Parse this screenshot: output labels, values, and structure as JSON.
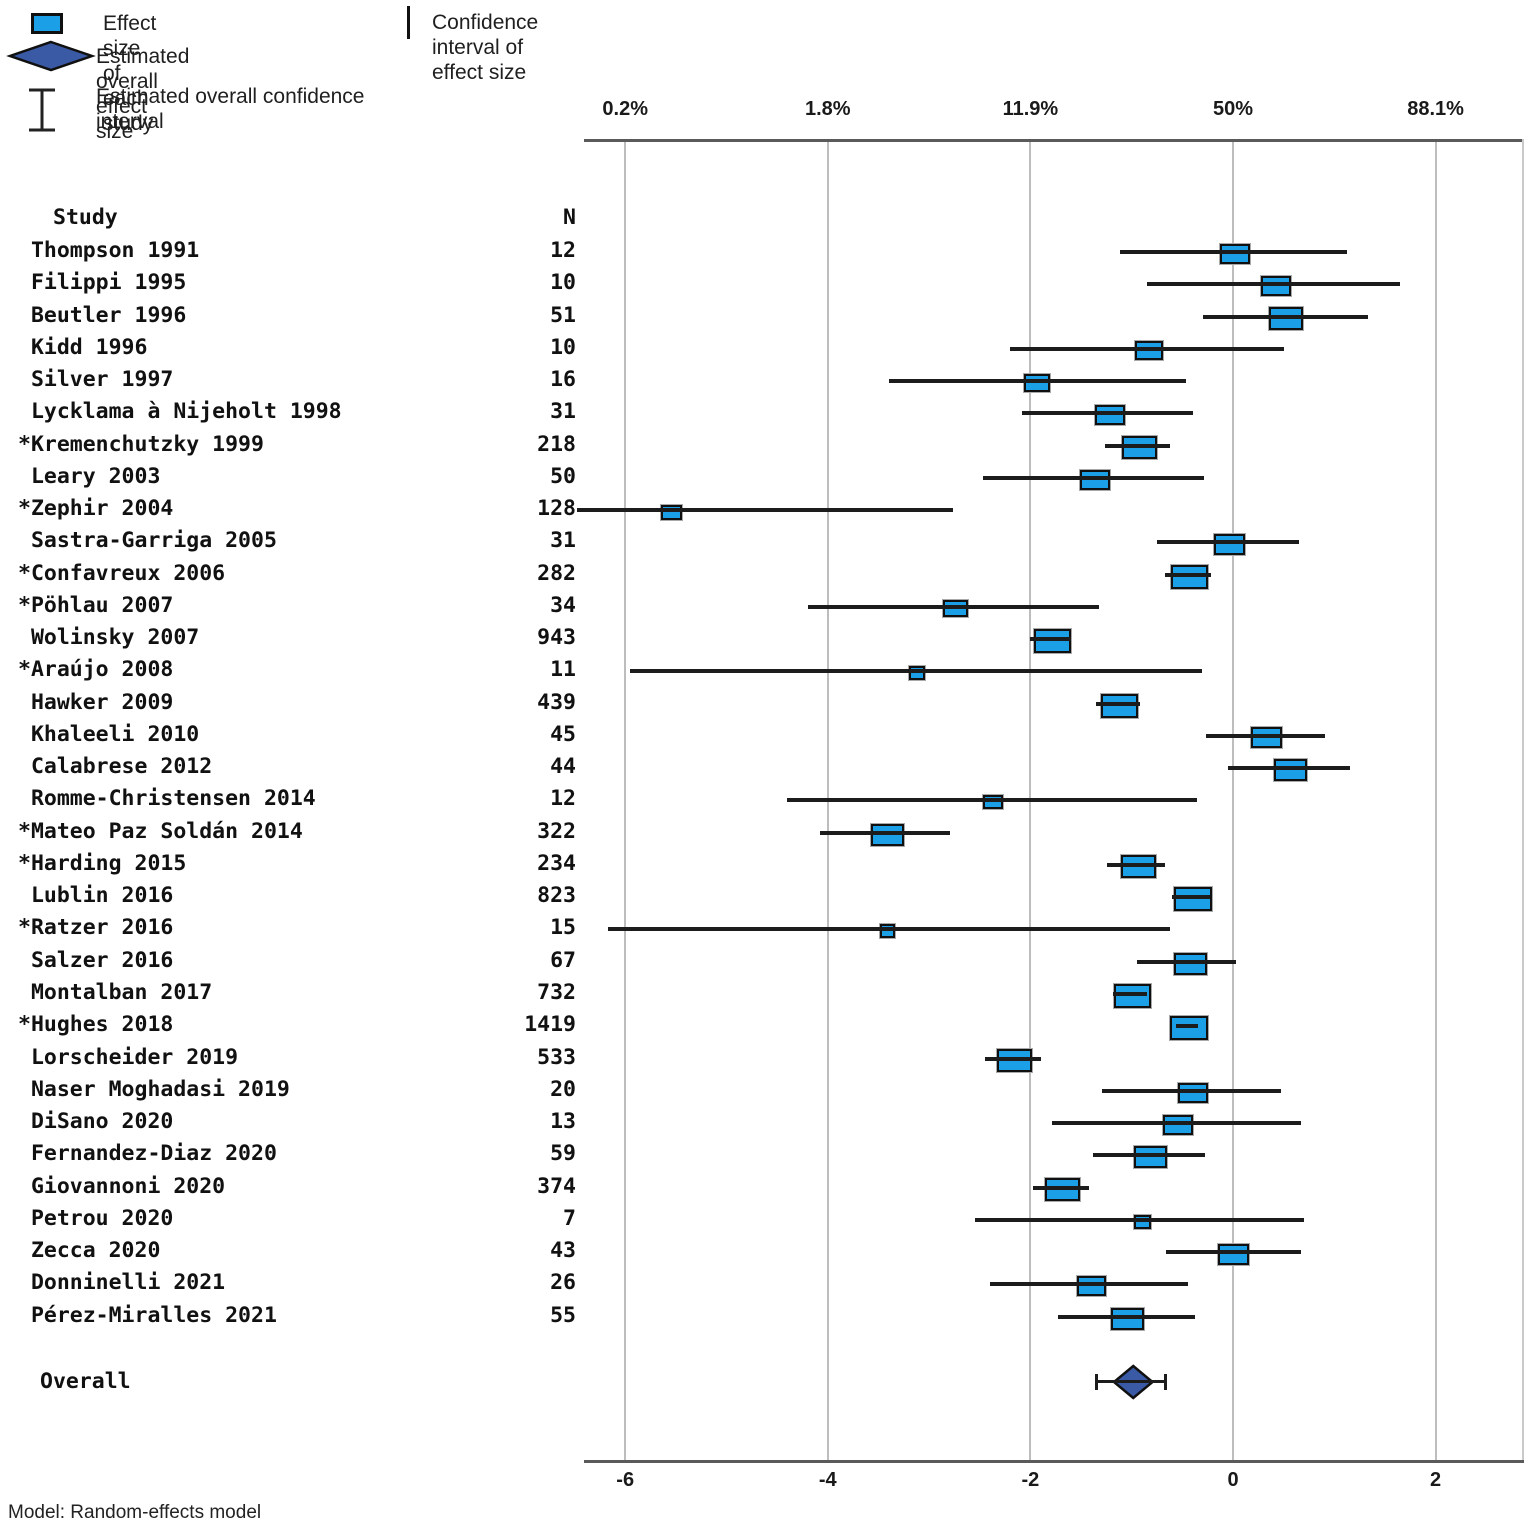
{
  "legend": {
    "items": [
      {
        "icon": "effect-box-icon",
        "label": "Effect size of each study"
      },
      {
        "icon": "overall-diamond-icon",
        "label": "Estimated overall effect size"
      },
      {
        "icon": "overall-ci-ibeam-icon",
        "label": "Estimated overall confidence interval"
      }
    ],
    "separator_label": "Confidence interval of effect size"
  },
  "columns": {
    "study": "Study",
    "n": "N"
  },
  "overall_label": "Overall",
  "model_note": "Model: Random-effects model",
  "colors": {
    "box_fill": "#1b9fe6",
    "diamond_fill": "#3a5aa5",
    "ci_line": "#1c1c1c",
    "gridline": "#bdbdbd",
    "axis": "#5a5a5a"
  },
  "chart_data": {
    "type": "forest",
    "title": "",
    "top_axis_ticks": [
      "0.2%",
      "1.8%",
      "11.9%",
      "50%",
      "88.1%"
    ],
    "bottom_axis_ticks": [
      "-6",
      "-4",
      "-2",
      "0",
      "2"
    ],
    "axis_values": [
      -6,
      -4,
      -2,
      0,
      2
    ],
    "xlim": [
      -6.4,
      2.9
    ],
    "grid": "vertical",
    "studies": [
      {
        "name": "Thompson 1991",
        "n": "12",
        "es": 0.0,
        "lo": -1.12,
        "hi": 1.12,
        "w": 0.26
      },
      {
        "name": "Filippi 1995",
        "n": "10",
        "es": 0.4,
        "lo": -0.85,
        "hi": 1.65,
        "w": 0.26
      },
      {
        "name": "Beutler 1996",
        "n": "51",
        "es": 0.5,
        "lo": -0.3,
        "hi": 1.33,
        "w": 0.3
      },
      {
        "name": "Kidd 1996",
        "n": "10",
        "es": -0.85,
        "lo": -2.2,
        "hi": 0.5,
        "w": 0.24
      },
      {
        "name": "Silver 1997",
        "n": "16",
        "es": -1.95,
        "lo": -3.4,
        "hi": -0.47,
        "w": 0.22
      },
      {
        "name": "Lycklama à Nijeholt 1998",
        "n": "31",
        "es": -1.23,
        "lo": -2.08,
        "hi": -0.39,
        "w": 0.26
      },
      {
        "name": "*Kremenchutzky 1999",
        "n": "218",
        "es": -0.94,
        "lo": -1.26,
        "hi": -0.62,
        "w": 0.31
      },
      {
        "name": "Leary 2003",
        "n": "50",
        "es": -1.38,
        "lo": -2.47,
        "hi": -0.29,
        "w": 0.26
      },
      {
        "name": "*Zephir 2004",
        "n": "128",
        "es": -5.56,
        "lo": -6.48,
        "hi": -2.77,
        "w": 0.17
      },
      {
        "name": "Sastra-Garriga 2005",
        "n": "31",
        "es": -0.05,
        "lo": -0.75,
        "hi": 0.65,
        "w": 0.27
      },
      {
        "name": "*Confavreux 2006",
        "n": "282",
        "es": -0.45,
        "lo": -0.67,
        "hi": -0.22,
        "w": 0.33
      },
      {
        "name": "*Pöhlau 2007",
        "n": "34",
        "es": -2.76,
        "lo": -4.2,
        "hi": -1.33,
        "w": 0.21
      },
      {
        "name": "Wolinsky 2007",
        "n": "943",
        "es": -1.8,
        "lo": -2.0,
        "hi": -1.6,
        "w": 0.33
      },
      {
        "name": "*Araújo 2008",
        "n": "11",
        "es": -3.14,
        "lo": -5.95,
        "hi": -0.3,
        "w": 0.12
      },
      {
        "name": "Hawker 2009",
        "n": "439",
        "es": -1.14,
        "lo": -1.35,
        "hi": -0.92,
        "w": 0.33
      },
      {
        "name": "Khaleeli 2010",
        "n": "45",
        "es": 0.31,
        "lo": -0.27,
        "hi": 0.9,
        "w": 0.27
      },
      {
        "name": "Calabrese 2012",
        "n": "44",
        "es": 0.55,
        "lo": -0.05,
        "hi": 1.15,
        "w": 0.29
      },
      {
        "name": "Romme-Christensen 2014",
        "n": "12",
        "es": -2.39,
        "lo": -4.4,
        "hi": -0.35,
        "w": 0.16
      },
      {
        "name": "*Mateo Paz Soldán 2014",
        "n": "322",
        "es": -3.43,
        "lo": -4.08,
        "hi": -2.8,
        "w": 0.29
      },
      {
        "name": "*Harding 2015",
        "n": "234",
        "es": -0.95,
        "lo": -1.24,
        "hi": -0.67,
        "w": 0.31
      },
      {
        "name": "Lublin 2016",
        "n": "823",
        "es": -0.41,
        "lo": -0.6,
        "hi": -0.22,
        "w": 0.34
      },
      {
        "name": "*Ratzer 2016",
        "n": "15",
        "es": -3.43,
        "lo": -6.17,
        "hi": -0.62,
        "w": 0.11
      },
      {
        "name": "Salzer 2016",
        "n": "67",
        "es": -0.44,
        "lo": -0.95,
        "hi": 0.03,
        "w": 0.29
      },
      {
        "name": "Montalban 2017",
        "n": "732",
        "es": -1.01,
        "lo": -1.18,
        "hi": -0.84,
        "w": 0.33
      },
      {
        "name": "*Hughes 2018",
        "n": "1419",
        "es": -0.45,
        "lo": -0.56,
        "hi": -0.34,
        "w": 0.34
      },
      {
        "name": "Lorscheider 2019",
        "n": "533",
        "es": -2.18,
        "lo": -2.45,
        "hi": -1.9,
        "w": 0.31
      },
      {
        "name": "Naser Moghadasi 2019",
        "n": "20",
        "es": -0.41,
        "lo": -1.29,
        "hi": 0.48,
        "w": 0.26
      },
      {
        "name": "DiSano 2020",
        "n": "13",
        "es": -0.56,
        "lo": -1.79,
        "hi": 0.67,
        "w": 0.26
      },
      {
        "name": "Fernandez-Diaz 2020",
        "n": "59",
        "es": -0.83,
        "lo": -1.38,
        "hi": -0.27,
        "w": 0.29
      },
      {
        "name": "Giovannoni 2020",
        "n": "374",
        "es": -1.7,
        "lo": -1.97,
        "hi": -1.42,
        "w": 0.31
      },
      {
        "name": "Petrou 2020",
        "n": "7",
        "es": -0.91,
        "lo": -2.55,
        "hi": 0.7,
        "w": 0.13
      },
      {
        "name": "Zecca 2020",
        "n": "43",
        "es": -0.01,
        "lo": -0.66,
        "hi": 0.67,
        "w": 0.27
      },
      {
        "name": "Donninelli 2021",
        "n": "26",
        "es": -1.42,
        "lo": -2.4,
        "hi": -0.45,
        "w": 0.25
      },
      {
        "name": "Pérez-Miralles 2021",
        "n": "55",
        "es": -1.06,
        "lo": -1.73,
        "hi": -0.38,
        "w": 0.29
      }
    ],
    "overall": {
      "es": -0.98,
      "lo": -1.36,
      "hi": -0.65,
      "half_width": 0.19
    }
  }
}
